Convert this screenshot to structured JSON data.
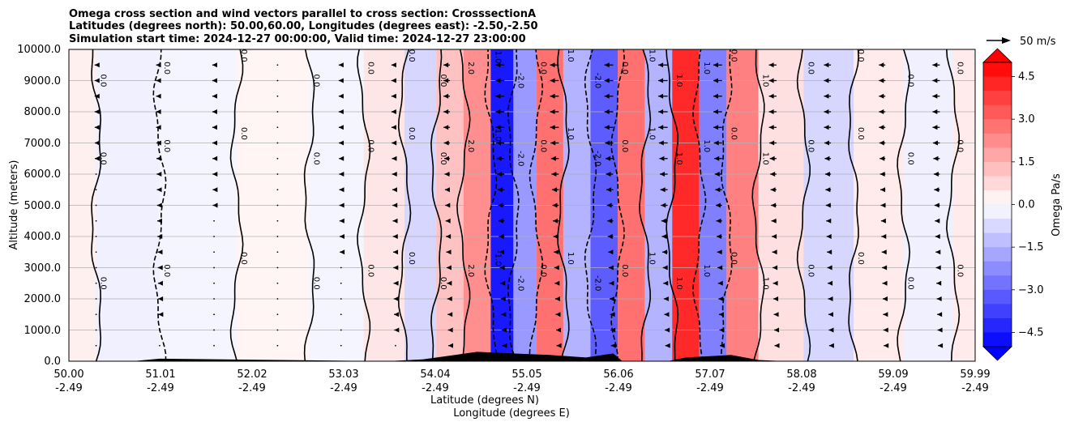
{
  "chart_data": {
    "type": "contour",
    "title_lines": [
      "Omega cross section and wind vectors parallel to cross section: CrosssectionA",
      "Latitudes (degrees north): 50.00,60.00, Longitudes (degrees east): -2.50,-2.50",
      "Simulation start time: 2024-12-27 00:00:00, Valid time: 2024-12-27 23:00:00"
    ],
    "ylabel": "Altitude (meters)",
    "xlabel_lat": "Latitude (degrees N)",
    "xlabel_lon": "Longitude (degrees E)",
    "yticks": [
      "0.0",
      "1000.0",
      "2000.0",
      "3000.0",
      "4000.0",
      "5000.0",
      "6000.0",
      "7000.0",
      "8000.0",
      "9000.0",
      "10000.0"
    ],
    "ylim": [
      0,
      10000
    ],
    "xticks_lat": [
      "50.00",
      "51.01",
      "52.02",
      "53.03",
      "54.04",
      "55.05",
      "56.06",
      "57.07",
      "58.08",
      "59.09",
      "59.99"
    ],
    "xticks_lon": [
      "-2.49",
      "-2.49",
      "-2.49",
      "-2.49",
      "-2.49",
      "-2.49",
      "-2.49",
      "-2.49",
      "-2.49",
      "-2.49",
      "-2.49"
    ],
    "xlim": [
      50.0,
      59.99
    ],
    "grid": "horizontal",
    "colorbar": {
      "label": "Omega Pa/s",
      "ticks": [
        "4.5",
        "3.0",
        "1.5",
        "0.0",
        "−1.5",
        "−3.0",
        "−4.5"
      ],
      "range": [
        -5.0,
        5.0
      ],
      "colormap": "bwr",
      "extend": "both",
      "high_color": "#ff0000",
      "low_color": "#0000ff"
    },
    "quiver_key": {
      "label": "50 m/s",
      "speed": 50
    },
    "contour_labels": [
      "0.0",
      "1.0",
      "-1.0",
      "2.0",
      "-2.0"
    ],
    "omega_bands": [
      {
        "lat": 50.0,
        "omega": 0.3
      },
      {
        "lat": 50.6,
        "omega": -0.3
      },
      {
        "lat": 51.4,
        "omega": -0.2
      },
      {
        "lat": 52.3,
        "omega": 0.2
      },
      {
        "lat": 53.0,
        "omega": -0.2
      },
      {
        "lat": 53.5,
        "omega": 0.5
      },
      {
        "lat": 53.9,
        "omega": -0.8
      },
      {
        "lat": 54.2,
        "omega": 1.2
      },
      {
        "lat": 54.5,
        "omega": 2.2
      },
      {
        "lat": 54.8,
        "omega": -4.5
      },
      {
        "lat": 55.0,
        "omega": -2.0
      },
      {
        "lat": 55.3,
        "omega": 2.8
      },
      {
        "lat": 55.6,
        "omega": -1.5
      },
      {
        "lat": 55.9,
        "omega": -3.2
      },
      {
        "lat": 56.2,
        "omega": 2.8
      },
      {
        "lat": 56.5,
        "omega": -1.5
      },
      {
        "lat": 56.8,
        "omega": 4.2
      },
      {
        "lat": 57.1,
        "omega": -2.5
      },
      {
        "lat": 57.4,
        "omega": 2.5
      },
      {
        "lat": 57.8,
        "omega": 0.6
      },
      {
        "lat": 58.4,
        "omega": -0.8
      },
      {
        "lat": 58.9,
        "omega": 0.4
      },
      {
        "lat": 59.5,
        "omega": -0.3
      },
      {
        "lat": 59.99,
        "omega": 0.4
      }
    ],
    "wind_u": [
      {
        "lat": 50.3,
        "u": -5
      },
      {
        "lat": 51.0,
        "u": -12
      },
      {
        "lat": 51.6,
        "u": -6
      },
      {
        "lat": 52.3,
        "u": -4
      },
      {
        "lat": 53.0,
        "u": -8
      },
      {
        "lat": 53.6,
        "u": -14
      },
      {
        "lat": 54.2,
        "u": -22
      },
      {
        "lat": 54.8,
        "u": -30
      },
      {
        "lat": 55.4,
        "u": -30
      },
      {
        "lat": 56.0,
        "u": -30
      },
      {
        "lat": 56.6,
        "u": -32
      },
      {
        "lat": 57.2,
        "u": -30
      },
      {
        "lat": 57.8,
        "u": -26
      },
      {
        "lat": 58.4,
        "u": -24
      },
      {
        "lat": 59.0,
        "u": -22
      },
      {
        "lat": 59.6,
        "u": -25
      }
    ],
    "terrain": [
      {
        "lat": 50.0,
        "alt": 0
      },
      {
        "lat": 50.7,
        "alt": 0
      },
      {
        "lat": 51.0,
        "alt": 80
      },
      {
        "lat": 52.0,
        "alt": 50
      },
      {
        "lat": 53.5,
        "alt": 0
      },
      {
        "lat": 53.9,
        "alt": 60
      },
      {
        "lat": 54.2,
        "alt": 180
      },
      {
        "lat": 54.5,
        "alt": 300
      },
      {
        "lat": 54.9,
        "alt": 250
      },
      {
        "lat": 55.3,
        "alt": 200
      },
      {
        "lat": 55.7,
        "alt": 120
      },
      {
        "lat": 56.0,
        "alt": 250
      },
      {
        "lat": 56.1,
        "alt": 0
      },
      {
        "lat": 56.6,
        "alt": 0
      },
      {
        "lat": 56.8,
        "alt": 120
      },
      {
        "lat": 57.3,
        "alt": 200
      },
      {
        "lat": 57.6,
        "alt": 40
      },
      {
        "lat": 57.9,
        "alt": 0
      },
      {
        "lat": 59.99,
        "alt": 0
      }
    ]
  }
}
